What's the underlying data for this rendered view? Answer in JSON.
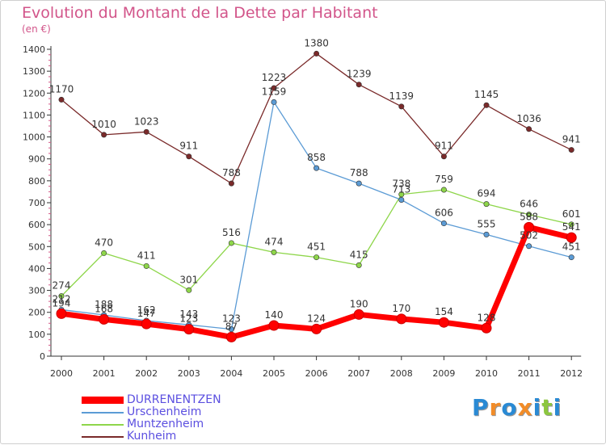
{
  "header": {
    "title": "Evolution du Montant de la Dette par Habitant",
    "subtitle": "(en €)"
  },
  "legend": [
    {
      "label": "DURRENENTZEN",
      "color": "#ff0000"
    },
    {
      "label": "Urschenheim",
      "color": "#5b9bd5"
    },
    {
      "label": "Muntzenheim",
      "color": "#8ed64a"
    },
    {
      "label": "Kunheim",
      "color": "#7a2a2a"
    }
  ],
  "logo": {
    "letters": [
      "P",
      "r",
      "o",
      "x",
      "i",
      "t",
      "i"
    ],
    "colors": [
      "#2a8ad4",
      "#f28c28",
      "#2a8ad4",
      "#f28c28",
      "#2a8ad4",
      "#8cc63f",
      "#2a8ad4"
    ]
  },
  "chart_data": {
    "type": "line",
    "title": "Evolution du Montant de la Dette par Habitant",
    "subtitle": "(en €)",
    "xlabel": "",
    "ylabel": "",
    "categories": [
      "2000",
      "2001",
      "2002",
      "2003",
      "2004",
      "2005",
      "2006",
      "2007",
      "2008",
      "2009",
      "2010",
      "2011",
      "2012"
    ],
    "yticks": [
      0,
      100,
      200,
      300,
      400,
      500,
      600,
      700,
      800,
      900,
      1000,
      1100,
      1200,
      1300,
      1400
    ],
    "ylim": [
      0,
      1400
    ],
    "grid": false,
    "legend_position": "bottom-left",
    "series": [
      {
        "name": "Kunheim",
        "color": "#7a2a2a",
        "values": [
          1170,
          1010,
          1023,
          911,
          788,
          1223,
          1380,
          1239,
          1139,
          911,
          1145,
          1036,
          941
        ]
      },
      {
        "name": "Muntzenheim",
        "color": "#8ed64a",
        "values": [
          274,
          470,
          411,
          301,
          516,
          474,
          451,
          415,
          738,
          759,
          694,
          646,
          601
        ]
      },
      {
        "name": "Urschenheim",
        "color": "#5b9bd5",
        "values": [
          212,
          188,
          162,
          143,
          123,
          1159,
          858,
          788,
          713,
          606,
          555,
          502,
          451
        ]
      },
      {
        "name": "DURRENENTZEN",
        "color": "#ff0000",
        "values": [
          194,
          168,
          147,
          123,
          87,
          140,
          124,
          190,
          170,
          154,
          128,
          588,
          541
        ]
      }
    ]
  }
}
